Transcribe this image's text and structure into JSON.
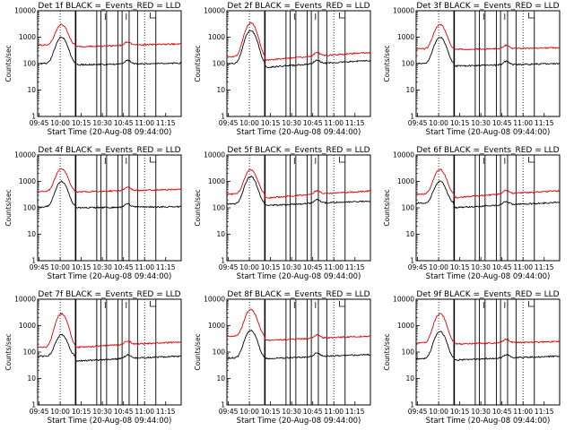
{
  "chart_data": [
    {
      "type": "line",
      "title": "Det 1f BLACK =_Events_RED = LLD",
      "xlabel": "Start Time (20-Aug-08 09:44:00)",
      "ylabel": "Counts/sec",
      "yscale": "log",
      "ylim": [
        1,
        10000
      ],
      "x_ticks": [
        "09:45",
        "10:00",
        "10:15",
        "10:30",
        "10:45",
        "11:00",
        "11:15"
      ],
      "y_ticks": [
        "1",
        "10",
        "100",
        "1000",
        "10000"
      ],
      "series": [
        {
          "color": "#000000",
          "start_level": 100,
          "peak": 1000,
          "post_level": 90,
          "end_level": 105
        },
        {
          "color": "#e00000",
          "start_level": 500,
          "peak": 3000,
          "post_level": 430,
          "end_level": 560
        }
      ]
    },
    {
      "type": "line",
      "title": "Det 2f BLACK =_Events_RED = LLD",
      "xlabel": "Start Time (20-Aug-08 09:44:00)",
      "ylabel": "Counts/sec",
      "yscale": "log",
      "ylim": [
        1,
        10000
      ],
      "x_ticks": [
        "09:45",
        "10:00",
        "10:15",
        "10:30",
        "10:45",
        "11:00",
        "11:15"
      ],
      "y_ticks": [
        "1",
        "10",
        "100",
        "1000",
        "10000"
      ],
      "series": [
        {
          "color": "#000000",
          "start_level": 100,
          "peak": 1800,
          "post_level": 70,
          "end_level": 130
        },
        {
          "color": "#e00000",
          "start_level": 180,
          "peak": 3500,
          "post_level": 130,
          "end_level": 260
        }
      ]
    },
    {
      "type": "line",
      "title": "Det 3f BLACK =_Events_RED = LLD",
      "xlabel": "Start Time (20-Aug-08 09:44:00)",
      "ylabel": "Counts/sec",
      "yscale": "log",
      "ylim": [
        1,
        10000
      ],
      "x_ticks": [
        "09:45",
        "10:00",
        "10:15",
        "10:30",
        "10:45",
        "11:00",
        "11:15"
      ],
      "y_ticks": [
        "1",
        "10",
        "100",
        "1000",
        "10000"
      ],
      "series": [
        {
          "color": "#000000",
          "start_level": 100,
          "peak": 1000,
          "post_level": 80,
          "end_level": 100
        },
        {
          "color": "#e00000",
          "start_level": 360,
          "peak": 3000,
          "post_level": 340,
          "end_level": 400
        }
      ]
    },
    {
      "type": "line",
      "title": "Det 4f BLACK =_Events_RED = LLD",
      "xlabel": "Start Time (20-Aug-08 09:44:00)",
      "ylabel": "Counts/sec",
      "yscale": "log",
      "ylim": [
        1,
        10000
      ],
      "x_ticks": [
        "09:45",
        "10:00",
        "10:15",
        "10:30",
        "10:45",
        "11:00",
        "11:15"
      ],
      "y_ticks": [
        "1",
        "10",
        "100",
        "1000",
        "10000"
      ],
      "series": [
        {
          "color": "#000000",
          "start_level": 110,
          "peak": 1000,
          "post_level": 100,
          "end_level": 110
        },
        {
          "color": "#e00000",
          "start_level": 420,
          "peak": 3000,
          "post_level": 400,
          "end_level": 500
        }
      ]
    },
    {
      "type": "line",
      "title": "Det 5f BLACK =_Events_RED = LLD",
      "xlabel": "Start Time (20-Aug-08 09:44:00)",
      "ylabel": "Counts/sec",
      "yscale": "log",
      "ylim": [
        1,
        10000
      ],
      "x_ticks": [
        "09:45",
        "10:00",
        "10:15",
        "10:30",
        "10:45",
        "11:00",
        "11:15"
      ],
      "y_ticks": [
        "1",
        "10",
        "100",
        "1000",
        "10000"
      ],
      "series": [
        {
          "color": "#000000",
          "start_level": 140,
          "peak": 1500,
          "post_level": 120,
          "end_level": 180
        },
        {
          "color": "#e00000",
          "start_level": 330,
          "peak": 2800,
          "post_level": 230,
          "end_level": 430
        }
      ]
    },
    {
      "type": "line",
      "title": "Det 6f BLACK =_Events_RED = LLD",
      "xlabel": "Start Time (20-Aug-08 09:44:00)",
      "ylabel": "Counts/sec",
      "yscale": "log",
      "ylim": [
        1,
        10000
      ],
      "x_ticks": [
        "09:45",
        "10:00",
        "10:15",
        "10:30",
        "10:45",
        "11:00",
        "11:15"
      ],
      "y_ticks": [
        "1",
        "10",
        "100",
        "1000",
        "10000"
      ],
      "series": [
        {
          "color": "#000000",
          "start_level": 150,
          "peak": 1000,
          "post_level": 100,
          "end_level": 160
        },
        {
          "color": "#e00000",
          "start_level": 330,
          "peak": 2800,
          "post_level": 240,
          "end_level": 440
        }
      ]
    },
    {
      "type": "line",
      "title": "Det 7f BLACK =_Events_RED = LLD",
      "xlabel": "Start Time (20-Aug-08 09:44:00)",
      "ylabel": "Counts/sec",
      "yscale": "log",
      "ylim": [
        1,
        10000
      ],
      "x_ticks": [
        "09:45",
        "10:00",
        "10:15",
        "10:30",
        "10:45",
        "11:00",
        "11:15"
      ],
      "y_ticks": [
        "1",
        "10",
        "100",
        "1000",
        "10000"
      ],
      "series": [
        {
          "color": "#000000",
          "start_level": 70,
          "peak": 450,
          "post_level": 45,
          "end_level": 70
        },
        {
          "color": "#e00000",
          "start_level": 150,
          "peak": 2800,
          "post_level": 150,
          "end_level": 240
        }
      ]
    },
    {
      "type": "line",
      "title": "Det 8f BLACK =_Events_RED = LLD",
      "xlabel": "Start Time (20-Aug-08 09:44:00)",
      "ylabel": "Counts/sec",
      "yscale": "log",
      "ylim": [
        1,
        10000
      ],
      "x_ticks": [
        "09:45",
        "10:00",
        "10:15",
        "10:30",
        "10:45",
        "11:00",
        "11:15"
      ],
      "y_ticks": [
        "1",
        "10",
        "100",
        "1000",
        "10000"
      ],
      "series": [
        {
          "color": "#000000",
          "start_level": 60,
          "peak": 650,
          "post_level": 55,
          "end_level": 80
        },
        {
          "color": "#e00000",
          "start_level": 400,
          "peak": 4000,
          "post_level": 270,
          "end_level": 400
        }
      ]
    },
    {
      "type": "line",
      "title": "Det 9f BLACK =_Events_RED = LLD",
      "xlabel": "Start Time (20-Aug-08 09:44:00)",
      "ylabel": "Counts/sec",
      "yscale": "log",
      "ylim": [
        1,
        10000
      ],
      "x_ticks": [
        "09:45",
        "10:00",
        "10:15",
        "10:30",
        "10:45",
        "11:00",
        "11:15"
      ],
      "y_ticks": [
        "1",
        "10",
        "100",
        "1000",
        "10000"
      ],
      "series": [
        {
          "color": "#000000",
          "start_level": 55,
          "peak": 600,
          "post_level": 50,
          "end_level": 70
        },
        {
          "color": "#e00000",
          "start_level": 220,
          "peak": 2800,
          "post_level": 200,
          "end_level": 250
        }
      ]
    }
  ]
}
